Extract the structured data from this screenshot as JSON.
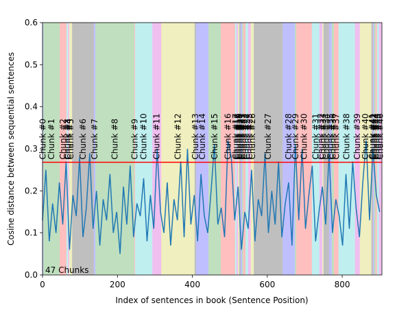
{
  "chart_data": {
    "type": "line",
    "xlabel": "Index of sentences in book (Sentence Position)",
    "ylabel": "Cosine distance between sequential sentences",
    "annotation": "47 Chunks",
    "xlim": [
      0,
      906
    ],
    "xticks": [
      0,
      200,
      400,
      600,
      800
    ],
    "ylim": [
      0,
      0.6
    ],
    "yticks": [
      {
        "value": 0,
        "label": "0.0"
      },
      {
        "value": 0.1,
        "label": "0.1"
      },
      {
        "value": 0.2,
        "label": "0.2"
      },
      {
        "value": 0.3,
        "label": "0.3"
      },
      {
        "value": 0.4,
        "label": "0.4"
      },
      {
        "value": 0.5,
        "label": "0.5"
      },
      {
        "value": 0.6,
        "label": "0.6"
      }
    ],
    "threshold": {
      "value": 0.268,
      "color": "#ff0000"
    },
    "chunk_colors": [
      "#0000ff",
      "#008000",
      "#ff0000",
      "#00bfbf",
      "#bf00bf",
      "#bfbf00",
      "#000000"
    ],
    "chunks": [
      {
        "label": "Chunk #0",
        "start": 0,
        "end": 2
      },
      {
        "label": "Chunk #1",
        "start": 2,
        "end": 46
      },
      {
        "label": "Chunk #2",
        "start": 46,
        "end": 64
      },
      {
        "label": "Chunk #3",
        "start": 64,
        "end": 68
      },
      {
        "label": "Chunk #4",
        "start": 68,
        "end": 71
      },
      {
        "label": "Chunk #5",
        "start": 71,
        "end": 79
      },
      {
        "label": "Chunk #6",
        "start": 79,
        "end": 137
      },
      {
        "label": "Chunk #7",
        "start": 137,
        "end": 141
      },
      {
        "label": "Chunk #8",
        "start": 141,
        "end": 245
      },
      {
        "label": "Chunk #9",
        "start": 245,
        "end": 247
      },
      {
        "label": "Chunk #10",
        "start": 247,
        "end": 293
      },
      {
        "label": "Chunk #11",
        "start": 293,
        "end": 317
      },
      {
        "label": "Chunk #12",
        "start": 317,
        "end": 406
      },
      {
        "label": "Chunk #13",
        "start": 406,
        "end": 410
      },
      {
        "label": "Chunk #14",
        "start": 410,
        "end": 443
      },
      {
        "label": "Chunk #15",
        "start": 443,
        "end": 476
      },
      {
        "label": "Chunk #16",
        "start": 476,
        "end": 514
      },
      {
        "label": "Chunk #17",
        "start": 514,
        "end": 518
      },
      {
        "label": "Chunk #18",
        "start": 518,
        "end": 522
      },
      {
        "label": "Chunk #19",
        "start": 522,
        "end": 525
      },
      {
        "label": "Chunk #20",
        "start": 525,
        "end": 529
      },
      {
        "label": "Chunk #21",
        "start": 529,
        "end": 533
      },
      {
        "label": "Chunk #22",
        "start": 533,
        "end": 536
      },
      {
        "label": "Chunk #23",
        "start": 536,
        "end": 542
      },
      {
        "label": "Chunk #24",
        "start": 542,
        "end": 549
      },
      {
        "label": "Chunk #25",
        "start": 549,
        "end": 556
      },
      {
        "label": "Chunk #26",
        "start": 556,
        "end": 564
      },
      {
        "label": "Chunk #27",
        "start": 564,
        "end": 641
      },
      {
        "label": "Chunk #28",
        "start": 641,
        "end": 674
      },
      {
        "label": "Chunk #29",
        "start": 674,
        "end": 677
      },
      {
        "label": "Chunk #30",
        "start": 677,
        "end": 719
      },
      {
        "label": "Chunk #31",
        "start": 719,
        "end": 739
      },
      {
        "label": "Chunk #32",
        "start": 739,
        "end": 747
      },
      {
        "label": "Chunk #33",
        "start": 747,
        "end": 750
      },
      {
        "label": "Chunk #34",
        "start": 750,
        "end": 765
      },
      {
        "label": "Chunk #35",
        "start": 765,
        "end": 772
      },
      {
        "label": "Chunk #36",
        "start": 772,
        "end": 778
      },
      {
        "label": "Chunk #37",
        "start": 778,
        "end": 790
      },
      {
        "label": "Chunk #38",
        "start": 790,
        "end": 834
      },
      {
        "label": "Chunk #39",
        "start": 834,
        "end": 847
      },
      {
        "label": "Chunk #40",
        "start": 847,
        "end": 878
      },
      {
        "label": "Chunk #41",
        "start": 878,
        "end": 882
      },
      {
        "label": "Chunk #42",
        "start": 882,
        "end": 885
      },
      {
        "label": "Chunk #43",
        "start": 885,
        "end": 889
      },
      {
        "label": "Chunk #44",
        "start": 889,
        "end": 893
      },
      {
        "label": "Chunk #45",
        "start": 893,
        "end": 898
      },
      {
        "label": "Chunk #46",
        "start": 898,
        "end": 905
      }
    ],
    "color": "#1f77b4",
    "x": [
      0,
      9,
      18,
      27,
      36,
      45,
      54,
      63,
      72,
      81,
      90,
      99,
      108,
      117,
      126,
      135,
      144,
      153,
      162,
      171,
      180,
      189,
      198,
      207,
      216,
      225,
      234,
      243,
      252,
      261,
      270,
      279,
      288,
      297,
      306,
      315,
      324,
      333,
      342,
      351,
      360,
      369,
      378,
      387,
      396,
      405,
      414,
      423,
      432,
      441,
      450,
      459,
      468,
      477,
      486,
      495,
      504,
      513,
      522,
      531,
      540,
      549,
      558,
      567,
      576,
      585,
      594,
      603,
      612,
      621,
      630,
      639,
      648,
      657,
      666,
      675,
      684,
      693,
      702,
      711,
      720,
      729,
      738,
      747,
      756,
      765,
      774,
      783,
      792,
      801,
      810,
      819,
      828,
      837,
      846,
      855,
      864,
      873,
      882,
      891,
      900
    ],
    "values": [
      0.13,
      0.25,
      0.08,
      0.17,
      0.1,
      0.22,
      0.12,
      0.27,
      0.06,
      0.19,
      0.14,
      0.28,
      0.09,
      0.16,
      0.29,
      0.11,
      0.2,
      0.07,
      0.18,
      0.13,
      0.24,
      0.1,
      0.15,
      0.05,
      0.21,
      0.12,
      0.26,
      0.09,
      0.17,
      0.14,
      0.23,
      0.08,
      0.19,
      0.11,
      0.3,
      0.15,
      0.1,
      0.22,
      0.07,
      0.18,
      0.13,
      0.27,
      0.09,
      0.3,
      0.12,
      0.19,
      0.08,
      0.24,
      0.14,
      0.1,
      0.2,
      0.31,
      0.12,
      0.16,
      0.09,
      0.32,
      0.28,
      0.13,
      0.21,
      0.06,
      0.15,
      0.11,
      0.25,
      0.08,
      0.18,
      0.14,
      0.29,
      0.1,
      0.2,
      0.12,
      0.27,
      0.09,
      0.17,
      0.22,
      0.07,
      0.31,
      0.13,
      0.3,
      0.11,
      0.19,
      0.26,
      0.08,
      0.15,
      0.21,
      0.12,
      0.29,
      0.1,
      0.18,
      0.14,
      0.07,
      0.24,
      0.11,
      0.27,
      0.16,
      0.09,
      0.22,
      0.32,
      0.13,
      0.3,
      0.19,
      0.15
    ]
  }
}
